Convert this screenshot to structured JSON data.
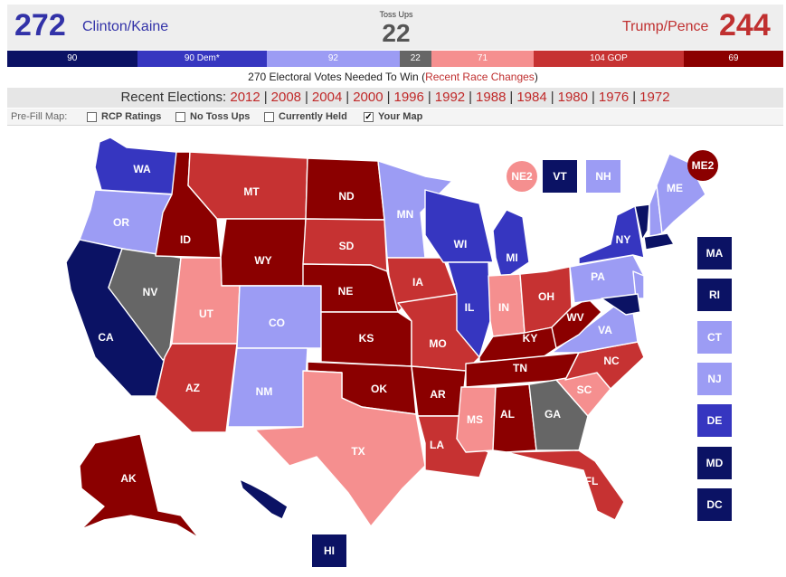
{
  "header": {
    "dem_total": "272",
    "dem_ticket": "Clinton/Kaine",
    "toss_label": "Toss Ups",
    "toss_total": "22",
    "rep_ticket": "Trump/Pence",
    "rep_total": "244"
  },
  "bar": [
    {
      "label": "90",
      "value": 90,
      "color": "#0b1264"
    },
    {
      "label": "90 Dem*",
      "value": 90,
      "color": "#3636c0"
    },
    {
      "label": "92",
      "value": 92,
      "color": "#9c9cf4"
    },
    {
      "label": "22",
      "value": 22,
      "color": "#666666"
    },
    {
      "label": "71",
      "value": 71,
      "color": "#f58f8f"
    },
    {
      "label": "104 GOP",
      "value": 104,
      "color": "#c63232"
    },
    {
      "label": "69",
      "value": 69,
      "color": "#8b0000"
    }
  ],
  "needed": {
    "text": "270 Electoral Votes Needed To Win (",
    "link": "Recent Race Changes",
    "close": ")"
  },
  "elections": {
    "label": "Recent Elections:",
    "years": [
      "2012",
      "2008",
      "2004",
      "2000",
      "1996",
      "1992",
      "1988",
      "1984",
      "1980",
      "1976",
      "1972"
    ]
  },
  "prefill": {
    "label": "Pre-Fill Map:",
    "options": [
      {
        "label": "RCP Ratings",
        "checked": false
      },
      {
        "label": "No Toss Ups",
        "checked": false
      },
      {
        "label": "Currently Held",
        "checked": false
      },
      {
        "label": "Your Map",
        "checked": true
      }
    ]
  },
  "colors": {
    "solid_dem": "#0b1264",
    "likely_dem": "#3636c0",
    "lean_dem": "#9c9cf4",
    "toss_up": "#666666",
    "lean_gop": "#f58f8f",
    "likely_gop": "#c63232",
    "solid_gop": "#8b0000"
  },
  "states": {
    "WA": "likely_dem",
    "OR": "lean_dem",
    "CA": "solid_dem",
    "NV": "toss_up",
    "ID": "solid_gop",
    "MT": "likely_gop",
    "WY": "solid_gop",
    "UT": "lean_gop",
    "AZ": "likely_gop",
    "CO": "lean_dem",
    "NM": "lean_dem",
    "ND": "solid_gop",
    "SD": "likely_gop",
    "NE": "solid_gop",
    "KS": "solid_gop",
    "OK": "solid_gop",
    "TX": "lean_gop",
    "MN": "lean_dem",
    "IA": "likely_gop",
    "MO": "likely_gop",
    "AR": "solid_gop",
    "LA": "likely_gop",
    "WI": "likely_dem",
    "IL": "likely_dem",
    "MI": "likely_dem",
    "IN": "lean_gop",
    "OH": "likely_gop",
    "KY": "solid_gop",
    "TN": "solid_gop",
    "MS": "lean_gop",
    "AL": "solid_gop",
    "GA": "toss_up",
    "FL": "likely_gop",
    "SC": "lean_gop",
    "NC": "likely_gop",
    "VA": "lean_dem",
    "WV": "solid_gop",
    "PA": "lean_dem",
    "NY": "likely_dem",
    "ME": "lean_dem",
    "AK": "solid_gop",
    "HI": "solid_dem",
    "VT": "solid_dem",
    "NH": "lean_dem",
    "MA": "solid_dem",
    "RI": "solid_dem",
    "CT": "lean_dem",
    "NJ": "lean_dem",
    "DE": "likely_dem",
    "MD": "solid_dem",
    "DC": "solid_dem",
    "NE2": "lean_gop",
    "ME2": "solid_gop"
  }
}
